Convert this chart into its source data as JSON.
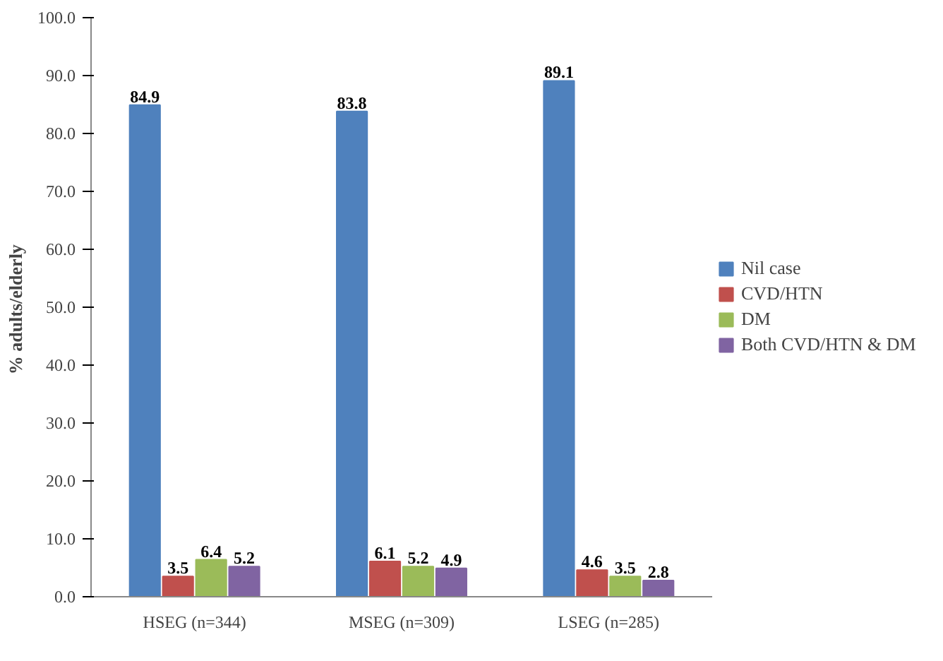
{
  "chart_data": {
    "type": "bar",
    "ylabel": "%  adults/elderly",
    "categories": [
      "HSEG (n=344)",
      "MSEG (n=309)",
      "LSEG (n=285)"
    ],
    "series": [
      {
        "name": "Nil case",
        "color": "#4f81bd",
        "values": [
          84.9,
          83.8,
          89.1
        ]
      },
      {
        "name": "CVD/HTN",
        "color": "#c0504d",
        "values": [
          3.5,
          6.1,
          4.6
        ]
      },
      {
        "name": "DM",
        "color": "#9bbb59",
        "values": [
          6.4,
          5.2,
          3.5
        ]
      },
      {
        "name": "Both CVD/HTN & DM",
        "color": "#8064a2",
        "values": [
          5.2,
          4.9,
          2.8
        ]
      }
    ],
    "ylim": [
      0,
      100
    ],
    "yticks": [
      {
        "value": 0,
        "label": "0.0"
      },
      {
        "value": 10,
        "label": "10.0"
      },
      {
        "value": 20,
        "label": "20.0"
      },
      {
        "value": 30,
        "label": "30.0"
      },
      {
        "value": 40,
        "label": "40.0"
      },
      {
        "value": 50,
        "label": "50.0"
      },
      {
        "value": 60,
        "label": "60.0"
      },
      {
        "value": 70,
        "label": "70.0"
      },
      {
        "value": 80,
        "label": "80.0"
      },
      {
        "value": 90,
        "label": "90.0"
      },
      {
        "value": 100,
        "label": "100.0"
      }
    ],
    "data_labels": true,
    "legend": "right",
    "grid": false
  }
}
